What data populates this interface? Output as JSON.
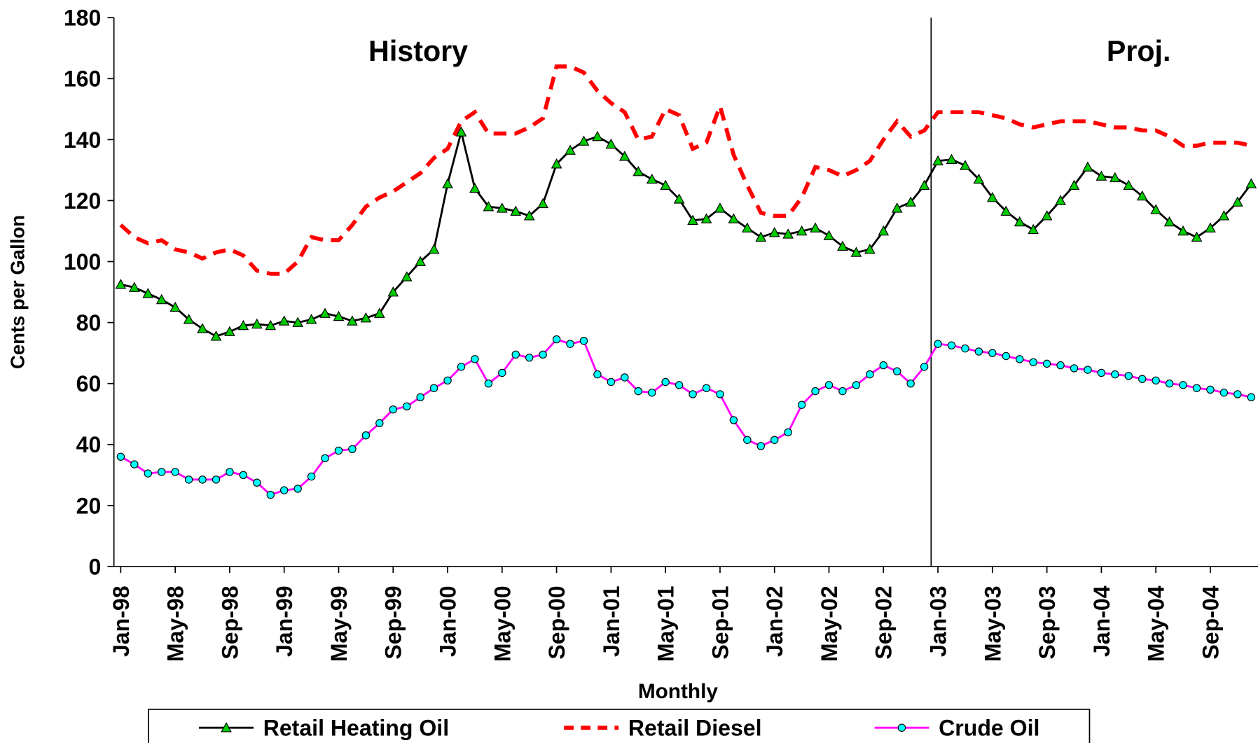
{
  "chart_data": {
    "type": "line",
    "y_label": "Cents per Gallon",
    "x_label": "Monthly",
    "annotations": [
      "History",
      "Proj."
    ],
    "categories": [
      "Jan-98",
      null,
      null,
      null,
      "May-98",
      null,
      null,
      null,
      "Sep-98",
      null,
      null,
      null,
      "Jan-99",
      null,
      null,
      null,
      "May-99",
      null,
      null,
      null,
      "Sep-99",
      null,
      null,
      null,
      "Jan-00",
      null,
      null,
      null,
      "May-00",
      null,
      null,
      null,
      "Sep-00",
      null,
      null,
      null,
      "Jan-01",
      null,
      null,
      null,
      "May-01",
      null,
      null,
      null,
      "Sep-01",
      null,
      null,
      null,
      "Jan-02",
      null,
      null,
      null,
      "May-02",
      null,
      null,
      null,
      "Sep-02",
      null,
      null,
      null,
      "Jan-03",
      null,
      null,
      null,
      "May-03",
      null,
      null,
      null,
      "Sep-03",
      null,
      null,
      null,
      "Jan-04",
      null,
      null,
      null,
      "May-04",
      null,
      null,
      null,
      "Sep-04",
      null,
      null,
      null
    ],
    "ylim": [
      0,
      180
    ],
    "yticks": [
      0,
      20,
      40,
      60,
      80,
      100,
      120,
      140,
      160,
      180
    ],
    "series": [
      {
        "name": "Retail Heating Oil",
        "color": "#000000",
        "marker": "triangle",
        "marker_color": "#00cc00",
        "dashed": false,
        "values": [
          92.5,
          91.5,
          89.5,
          87.5,
          85,
          81,
          78,
          75.5,
          77,
          79,
          79.5,
          79,
          80.5,
          80,
          81,
          83,
          82,
          80.5,
          81.5,
          83,
          90,
          95,
          100,
          104,
          125.5,
          142.5,
          124,
          118,
          117.5,
          116.5,
          115,
          119,
          132,
          136.5,
          139.5,
          141,
          138.5,
          134.5,
          129.5,
          127,
          125,
          120.5,
          113.5,
          114,
          117.5,
          114,
          111,
          108,
          109.5,
          109,
          110,
          111,
          108.5,
          105,
          103,
          104,
          110,
          117.5,
          119.5,
          125,
          133,
          133.5,
          131.5,
          127,
          121,
          116.5,
          113,
          110.5,
          115,
          120,
          125,
          131,
          128,
          127.5,
          125,
          121.5,
          117,
          113,
          110,
          108,
          111,
          115,
          119.5,
          125.5
        ]
      },
      {
        "name": "Retail Diesel",
        "color": "#ff0000",
        "marker": "none",
        "dashed": true,
        "values": [
          112,
          108,
          106,
          107,
          104,
          103,
          101,
          103,
          104,
          102,
          97,
          96,
          96,
          100,
          108,
          107,
          107,
          112,
          118,
          121,
          123,
          126,
          129,
          134,
          137,
          146,
          149,
          142,
          142,
          142,
          144,
          147,
          164,
          164,
          162,
          156,
          152,
          149,
          140,
          141,
          150,
          148,
          137,
          139,
          151,
          135,
          125,
          116,
          115,
          115,
          121,
          131,
          130,
          128,
          130,
          133,
          140,
          146,
          141,
          143,
          149,
          149,
          149,
          149,
          148,
          147,
          145,
          144,
          145,
          146,
          146,
          146,
          145,
          144,
          144,
          143,
          143,
          141,
          138,
          138,
          139,
          139,
          139,
          138
        ]
      },
      {
        "name": "Crude Oil",
        "color": "#ff00ff",
        "marker": "circle",
        "marker_color": "#00ffff",
        "dashed": false,
        "values": [
          36,
          33.5,
          30.5,
          31,
          31,
          28.5,
          28.5,
          28.5,
          31,
          30,
          27.5,
          23.5,
          25,
          25.5,
          29.5,
          35.5,
          38,
          38.5,
          43,
          47,
          51.5,
          52.5,
          55.5,
          58.5,
          61,
          65.5,
          68,
          60,
          63.5,
          69.5,
          68.5,
          69.5,
          74.5,
          73,
          74,
          63,
          60.5,
          62,
          57.5,
          57,
          60.5,
          59.5,
          56.5,
          58.5,
          56.5,
          48,
          41.5,
          39.5,
          41.5,
          44,
          53,
          57.5,
          59.5,
          57.5,
          59.5,
          63,
          66,
          64,
          60,
          65.5,
          73,
          72.5,
          71.5,
          70.5,
          70,
          69,
          68,
          67,
          66.5,
          66,
          65,
          64.5,
          63.5,
          63,
          62.5,
          61.5,
          61,
          60,
          59.5,
          58.5,
          58,
          57,
          56.5,
          55.5
        ]
      }
    ]
  }
}
